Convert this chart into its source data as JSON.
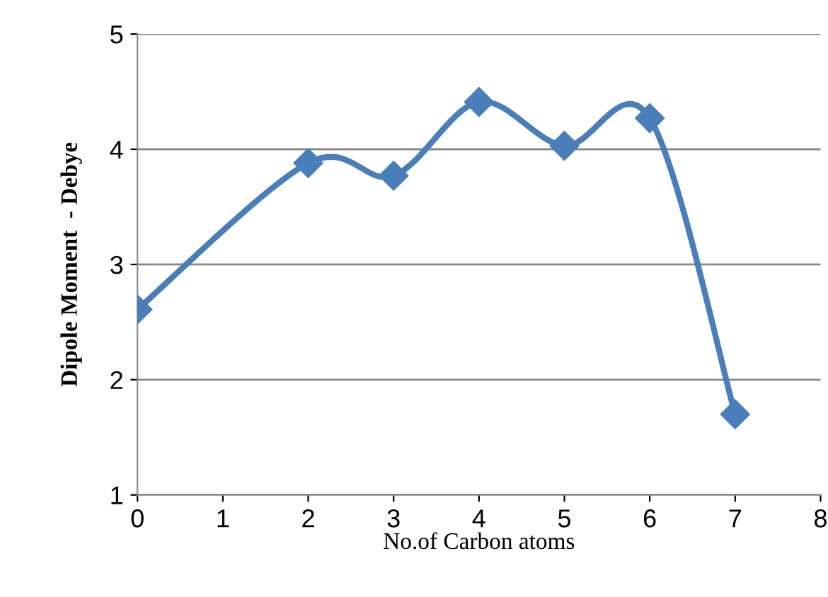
{
  "chart_data": {
    "type": "line",
    "xlabel": "No.of Carbon atoms",
    "ylabel": "Dipole Moment  - Debye",
    "x": [
      0,
      2,
      3,
      4,
      5,
      6,
      7
    ],
    "series": [
      {
        "color": "#4a7ebb",
        "values": [
          2.61,
          3.88,
          3.77,
          4.41,
          4.03,
          4.27,
          1.7
        ]
      }
    ],
    "xlim": [
      0,
      8
    ],
    "xticks": [
      0,
      1,
      2,
      3,
      4,
      5,
      6,
      7,
      8
    ],
    "ylim": [
      1,
      5
    ],
    "yticks": [
      1,
      2,
      3,
      4,
      5
    ],
    "grid": "y",
    "marker": "diamond",
    "line_style": "solid",
    "legend": false
  }
}
